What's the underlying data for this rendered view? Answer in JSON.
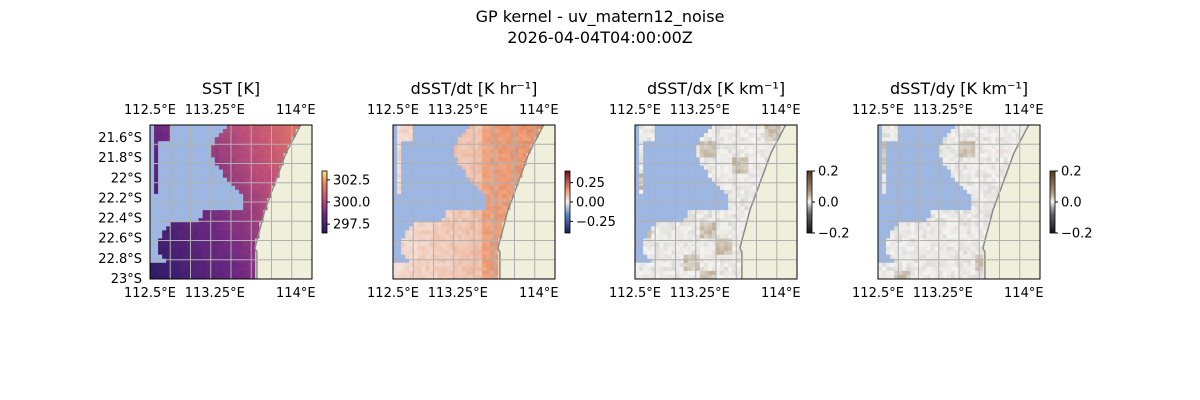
{
  "figure": {
    "title_line1": "GP kernel - uv_matern12_noise",
    "title_line2": "2026-04-04T04:00:00Z"
  },
  "colors": {
    "land": "#efefdb",
    "missing": "#9db7e2",
    "coast": "#8a8a8a",
    "grid": "#b0b0b0",
    "frame": "#000000"
  },
  "chart_data": [
    {
      "type": "heatmap",
      "title": "SST [K]",
      "x_ticks": [
        "112.5°E",
        "113.25°E",
        "114°E"
      ],
      "y_ticks": [
        "21.6°S",
        "21.8°S",
        "22°S",
        "22.2°S",
        "22.4°S",
        "22.6°S",
        "22.8°S",
        "23°S"
      ],
      "show_y_ticks": true,
      "xlim": [
        112.5,
        114.1
      ],
      "ylim": [
        -23.0,
        -21.45
      ],
      "colorbar": {
        "ticks": [
          "297.5",
          "300.0",
          "302.5"
        ],
        "values": [
          297.5,
          300.0,
          302.5
        ],
        "range": [
          296.5,
          303.5
        ],
        "colormap": "plasma"
      },
      "value_range": [
        297.0,
        303.0
      ]
    },
    {
      "type": "heatmap",
      "title": "dSST/dt [K hr⁻¹]",
      "x_ticks": [
        "112.5°E",
        "113.25°E",
        "114°E"
      ],
      "y_ticks": [],
      "show_y_ticks": false,
      "xlim": [
        112.5,
        114.1
      ],
      "ylim": [
        -23.0,
        -21.45
      ],
      "colorbar": {
        "ticks": [
          "0.25",
          "0.00",
          "−0.25"
        ],
        "values": [
          0.25,
          0.0,
          -0.25
        ],
        "range": [
          -0.4,
          0.4
        ],
        "colormap": "balance"
      },
      "value_range": [
        -0.05,
        0.3
      ]
    },
    {
      "type": "heatmap",
      "title": "dSST/dx [K km⁻¹]",
      "x_ticks": [
        "112.5°E",
        "113.25°E",
        "114°E"
      ],
      "y_ticks": [],
      "show_y_ticks": false,
      "xlim": [
        112.5,
        114.1
      ],
      "ylim": [
        -23.0,
        -21.45
      ],
      "colorbar": {
        "ticks": [
          "0.2",
          "0.0",
          "−0.2"
        ],
        "values": [
          0.2,
          0.0,
          -0.2
        ],
        "range": [
          -0.2,
          0.2
        ],
        "colormap": "diff"
      },
      "value_range": [
        -0.02,
        0.02
      ]
    },
    {
      "type": "heatmap",
      "title": "dSST/dy [K km⁻¹]",
      "x_ticks": [
        "112.5°E",
        "113.25°E",
        "114°E"
      ],
      "y_ticks": [],
      "show_y_ticks": false,
      "xlim": [
        112.5,
        114.1
      ],
      "ylim": [
        -23.0,
        -21.45
      ],
      "colorbar": {
        "ticks": [
          "0.2",
          "0.0",
          "−0.2"
        ],
        "values": [
          0.2,
          0.0,
          -0.2
        ],
        "range": [
          -0.2,
          0.2
        ],
        "colormap": "diff"
      },
      "value_range": [
        -0.02,
        0.02
      ]
    }
  ]
}
